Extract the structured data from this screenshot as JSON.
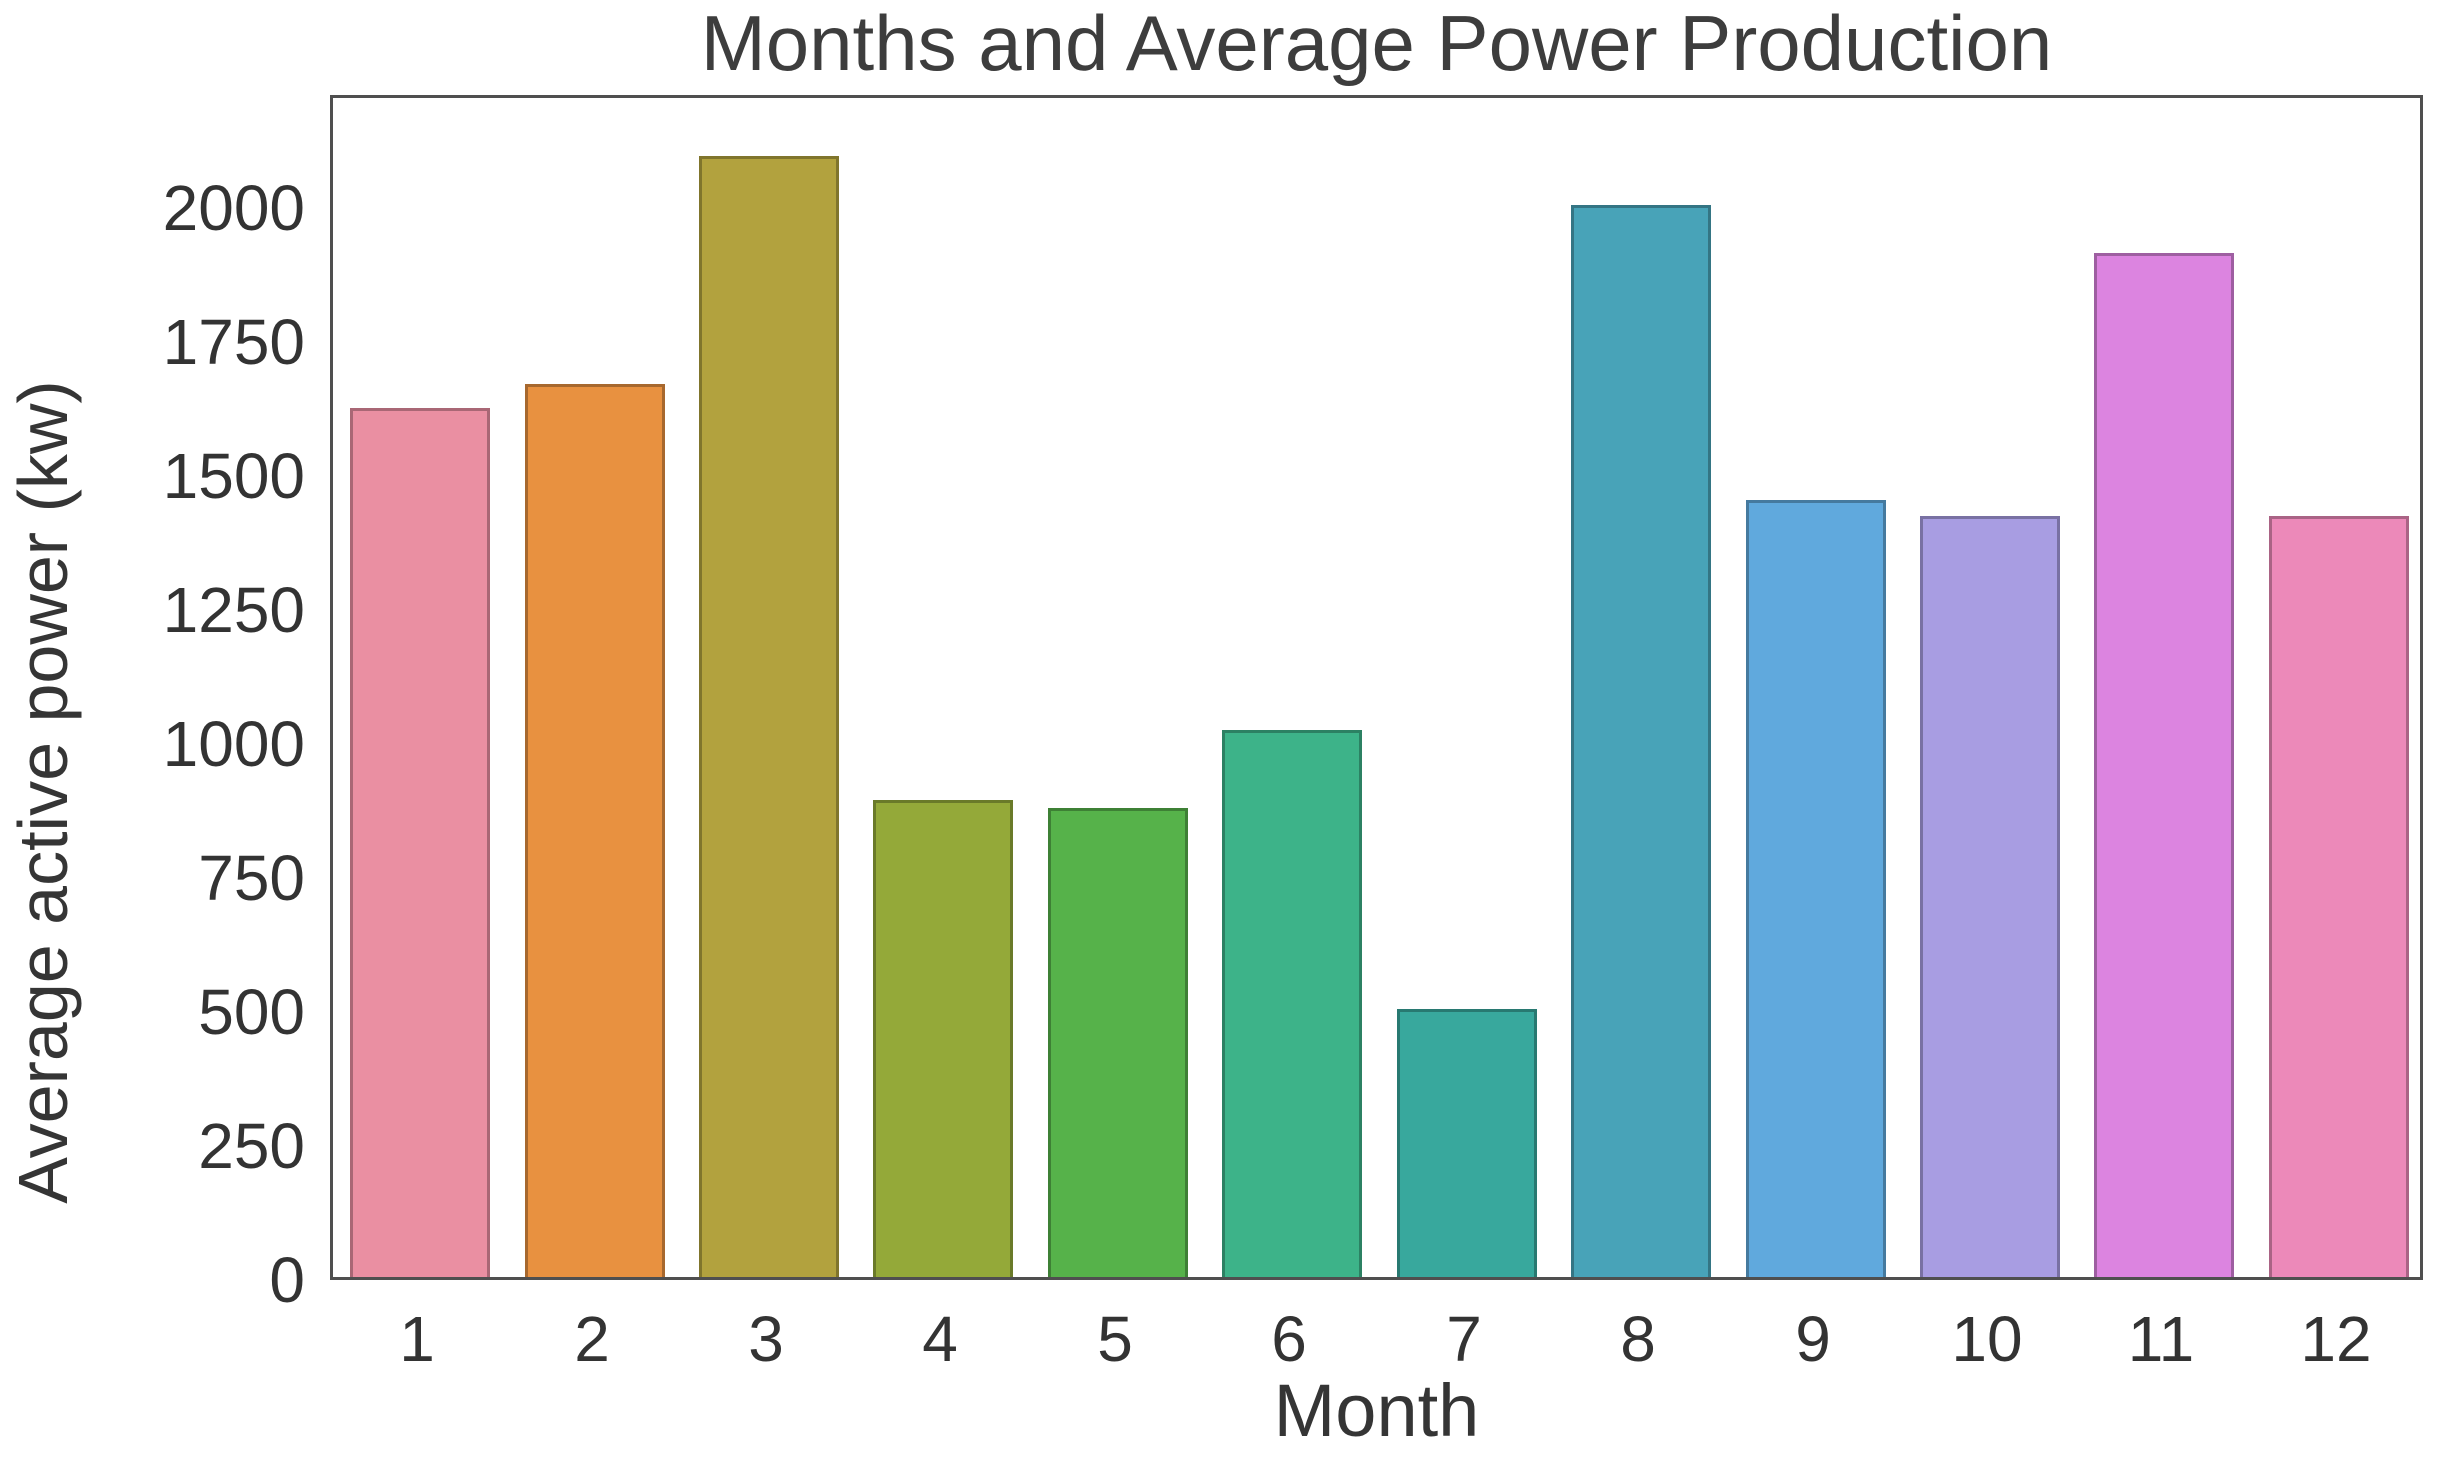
{
  "chart_data": {
    "type": "bar",
    "title": "Months and Average Power Production",
    "xlabel": "Month",
    "ylabel": "Average active power (kw)",
    "categories": [
      "1",
      "2",
      "3",
      "4",
      "5",
      "6",
      "7",
      "8",
      "9",
      "10",
      "11",
      "12"
    ],
    "values": [
      1620,
      1665,
      2090,
      890,
      875,
      1020,
      500,
      2000,
      1450,
      1420,
      1910,
      1420
    ],
    "bar_colors": [
      "#ea8fa2",
      "#e89140",
      "#b2a23e",
      "#94a939",
      "#56b24a",
      "#3db389",
      "#38a89d",
      "#48a3b8",
      "#60a9dd",
      "#a89de2",
      "#dc84e0",
      "#ec89b9"
    ],
    "bar_edge_color": "rgba(0,0,0,0.28)",
    "yticks": [
      0,
      250,
      500,
      750,
      1000,
      1250,
      1500,
      1750,
      2000
    ],
    "ylim": [
      0,
      2210
    ],
    "grid": false,
    "legend_position": "none",
    "axis_color": "#4f4f4f",
    "text_color": "#353535",
    "background_color": "#ffffff"
  }
}
